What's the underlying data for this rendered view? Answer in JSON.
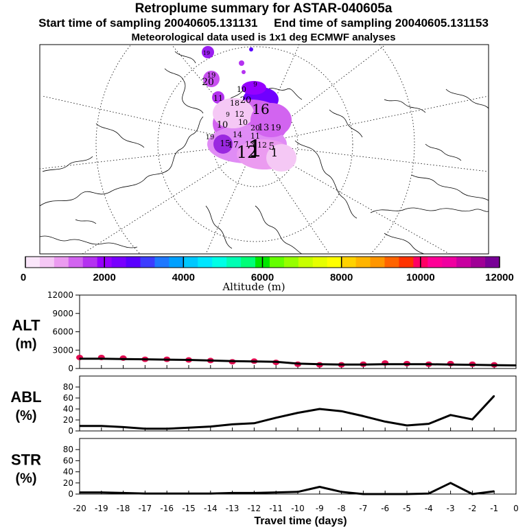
{
  "title": "Retroplume summary for ASTAR-040605a",
  "subtitle_start": "Start time of sampling 20040605.131131",
  "subtitle_end": "End time of sampling 20040605.131153",
  "subtitle_met": "Meteorological data used is 1x1 deg ECMWF analyses",
  "colorbar": {
    "label": "Altitude (m)",
    "tick_labels": [
      "0",
      "2000",
      "4000",
      "6000",
      "8000",
      "10000",
      "12000"
    ],
    "colors": [
      "#fae6fa",
      "#f5c8f5",
      "#eb9bf0",
      "#d264f0",
      "#b432f0",
      "#9600ff",
      "#7800ff",
      "#5a00ff",
      "#3c3cff",
      "#1e78ff",
      "#00a0ff",
      "#00c8ff",
      "#00e6ff",
      "#00ffe6",
      "#00ffb4",
      "#00ff78",
      "#00e600",
      "#64ff00",
      "#96ff00",
      "#c8ff00",
      "#e6ff00",
      "#ffff00",
      "#ffd200",
      "#ffb400",
      "#ff9600",
      "#ff6400",
      "#ff3200",
      "#ff0064",
      "#ff0096",
      "#f000a0",
      "#c800a0",
      "#a00096",
      "#780096"
    ]
  },
  "map": {
    "labels": [
      "19",
      "19",
      "20",
      "9",
      "10",
      "20",
      "11",
      "18",
      "16",
      "12",
      "9",
      "20",
      "10",
      "19",
      "10",
      "15",
      "14",
      "17",
      "13",
      "12",
      "11",
      "19",
      "13",
      "12",
      "1",
      "5",
      "1"
    ]
  },
  "chart_data": [
    {
      "type": "line",
      "panel": "ALT",
      "ylabel": "ALT\n(m)",
      "ylabel_line1": "ALT",
      "ylabel_line2": "(m)",
      "ylim": [
        0,
        12000
      ],
      "yticks": [
        0,
        3000,
        6000,
        9000,
        12000
      ],
      "ytick_labels": [
        "0",
        "3000",
        "6000",
        "9000",
        "12000"
      ],
      "x": [
        -20,
        -19,
        -18,
        -17,
        -16,
        -15,
        -14,
        -13,
        -12,
        -11,
        -10,
        -9,
        -8,
        -7,
        -6,
        -5,
        -4,
        -3,
        -2,
        -1,
        0
      ],
      "y": [
        1600,
        1600,
        1550,
        1500,
        1450,
        1400,
        1300,
        1200,
        1150,
        1100,
        800,
        700,
        650,
        650,
        700,
        700,
        700,
        650,
        600,
        550,
        500
      ],
      "markers": {
        "x": [
          -20,
          -19,
          -18,
          -17,
          -16,
          -15,
          -14,
          -13,
          -12,
          -11,
          -10,
          -9,
          -8,
          -7,
          -6,
          -5,
          -4,
          -3,
          -2,
          -1
        ],
        "y": [
          1800,
          1800,
          1700,
          1500,
          1500,
          1400,
          1300,
          1100,
          1200,
          1000,
          700,
          600,
          600,
          700,
          900,
          800,
          700,
          800,
          700,
          600
        ],
        "spread": [
          500,
          400,
          450,
          650,
          600,
          350,
          400,
          400,
          350,
          400,
          450,
          300,
          250,
          400,
          500,
          550,
          550,
          500,
          350,
          450
        ],
        "color": "#e00048"
      }
    },
    {
      "type": "line",
      "panel": "ABL",
      "ylabel_line1": "ABL",
      "ylabel_line2": "(%)",
      "ylim": [
        0,
        100
      ],
      "yticks": [
        0,
        20,
        40,
        60,
        80
      ],
      "ytick_labels": [
        "0",
        "20",
        "40",
        "60",
        "80"
      ],
      "x": [
        -20,
        -19,
        -18,
        -17,
        -16,
        -15,
        -14,
        -13,
        -12,
        -11,
        -10,
        -9,
        -8,
        -7,
        -6,
        -5,
        -4,
        -3,
        -2,
        -1
      ],
      "y": [
        9,
        9,
        7,
        4,
        4,
        6,
        8,
        12,
        14,
        24,
        33,
        40,
        36,
        27,
        17,
        10,
        13,
        29,
        21,
        64
      ]
    },
    {
      "type": "line",
      "panel": "STR",
      "ylabel_line1": "STR",
      "ylabel_line2": "(%)",
      "ylim": [
        0,
        100
      ],
      "yticks": [
        0,
        20,
        40,
        60,
        80
      ],
      "ytick_labels": [
        "0",
        "20",
        "40",
        "60",
        "80"
      ],
      "x": [
        -20,
        -19,
        -18,
        -17,
        -16,
        -15,
        -14,
        -13,
        -12,
        -11,
        -10,
        -9,
        -8,
        -7,
        -6,
        -5,
        -4,
        -3,
        -2,
        -1
      ],
      "y": [
        3,
        3,
        2,
        1,
        1,
        1,
        1,
        2,
        2,
        3,
        4,
        13,
        4,
        0,
        0,
        0,
        1,
        20,
        0,
        5
      ],
      "xlabel": "Travel time (days)",
      "xlim": [
        -20,
        0
      ],
      "xtick_labels": [
        "-20",
        "-19",
        "-18",
        "-17",
        "-16",
        "-15",
        "-14",
        "-13",
        "-12",
        "-11",
        "-10",
        "-9",
        "-8",
        "-7",
        "-6",
        "-5",
        "-4",
        "-3",
        "-2",
        "-1",
        "0"
      ]
    }
  ]
}
